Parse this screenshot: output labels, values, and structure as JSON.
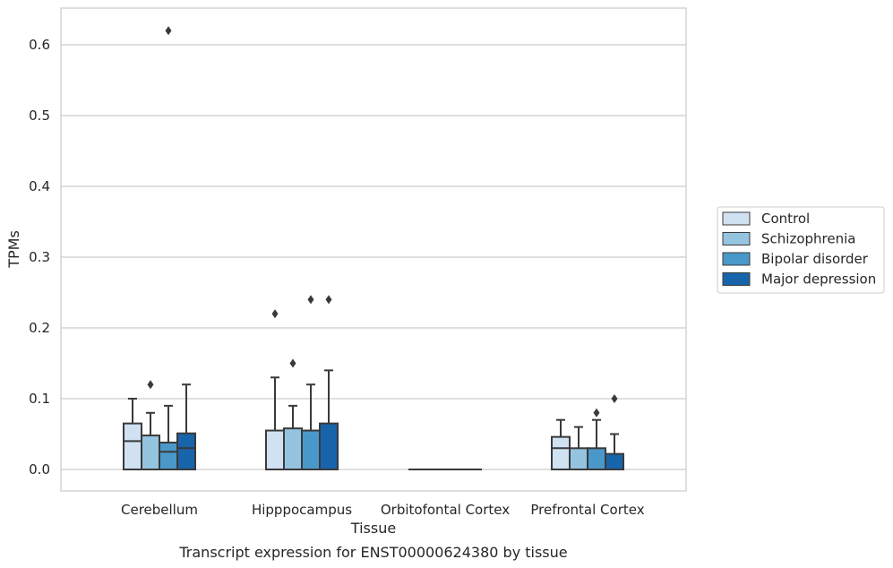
{
  "chart_data": {
    "type": "box",
    "title": "Transcript expression for ENST00000624380 by tissue",
    "xlabel": "Tissue",
    "ylabel": "TPMs",
    "categories": [
      "Cerebellum",
      "Hipppocampus",
      "Orbitofontal Cortex",
      "Prefrontal Cortex"
    ],
    "ylim": [
      -0.03,
      0.65
    ],
    "yticks": [
      0.0,
      0.1,
      0.2,
      0.3,
      0.4,
      0.5,
      0.6
    ],
    "ytick_labels": [
      "0.0",
      "0.1",
      "0.2",
      "0.3",
      "0.4",
      "0.5",
      "0.6"
    ],
    "grid": "horizontal",
    "legend_position": "right",
    "series": [
      {
        "name": "Control",
        "color": "#d0e1f2",
        "boxes": [
          {
            "q1": 0.0,
            "median": 0.04,
            "q3": 0.065,
            "whisker_low": 0.0,
            "whisker_high": 0.1,
            "outliers": []
          },
          {
            "q1": 0.0,
            "median": 0.0,
            "q3": 0.055,
            "whisker_low": 0.0,
            "whisker_high": 0.13,
            "outliers": [
              0.22
            ]
          },
          {
            "q1": 0.0,
            "median": 0.0,
            "q3": 0.0,
            "whisker_low": 0.0,
            "whisker_high": 0.0,
            "outliers": []
          },
          {
            "q1": 0.0,
            "median": 0.03,
            "q3": 0.046,
            "whisker_low": 0.0,
            "whisker_high": 0.07,
            "outliers": []
          }
        ]
      },
      {
        "name": "Schizophrenia",
        "color": "#94c4df",
        "boxes": [
          {
            "q1": 0.0,
            "median": 0.0,
            "q3": 0.048,
            "whisker_low": 0.0,
            "whisker_high": 0.08,
            "outliers": [
              0.12
            ]
          },
          {
            "q1": 0.0,
            "median": 0.0,
            "q3": 0.058,
            "whisker_low": 0.0,
            "whisker_high": 0.09,
            "outliers": [
              0.15
            ]
          },
          {
            "q1": 0.0,
            "median": 0.0,
            "q3": 0.0,
            "whisker_low": 0.0,
            "whisker_high": 0.0,
            "outliers": []
          },
          {
            "q1": 0.0,
            "median": 0.0,
            "q3": 0.03,
            "whisker_low": 0.0,
            "whisker_high": 0.06,
            "outliers": []
          }
        ]
      },
      {
        "name": "Bipolar disorder",
        "color": "#4a98c9",
        "boxes": [
          {
            "q1": 0.0,
            "median": 0.025,
            "q3": 0.038,
            "whisker_low": 0.0,
            "whisker_high": 0.09,
            "outliers": [
              0.62
            ]
          },
          {
            "q1": 0.0,
            "median": 0.0,
            "q3": 0.055,
            "whisker_low": 0.0,
            "whisker_high": 0.12,
            "outliers": [
              0.24
            ]
          },
          {
            "q1": 0.0,
            "median": 0.0,
            "q3": 0.0,
            "whisker_low": 0.0,
            "whisker_high": 0.0,
            "outliers": []
          },
          {
            "q1": 0.0,
            "median": 0.0,
            "q3": 0.03,
            "whisker_low": 0.0,
            "whisker_high": 0.07,
            "outliers": [
              0.08
            ]
          }
        ]
      },
      {
        "name": "Major depression",
        "color": "#1764ab",
        "boxes": [
          {
            "q1": 0.0,
            "median": 0.03,
            "q3": 0.051,
            "whisker_low": 0.0,
            "whisker_high": 0.12,
            "outliers": []
          },
          {
            "q1": 0.0,
            "median": 0.0,
            "q3": 0.065,
            "whisker_low": 0.0,
            "whisker_high": 0.14,
            "outliers": [
              0.24
            ]
          },
          {
            "q1": 0.0,
            "median": 0.0,
            "q3": 0.0,
            "whisker_low": 0.0,
            "whisker_high": 0.0,
            "outliers": []
          },
          {
            "q1": 0.0,
            "median": 0.0,
            "q3": 0.022,
            "whisker_low": 0.0,
            "whisker_high": 0.05,
            "outliers": [
              0.1
            ]
          }
        ]
      }
    ],
    "colors": {
      "grid": "#cccccc",
      "frame": "#cccccc",
      "box_edge": "#3a3a3a"
    }
  }
}
